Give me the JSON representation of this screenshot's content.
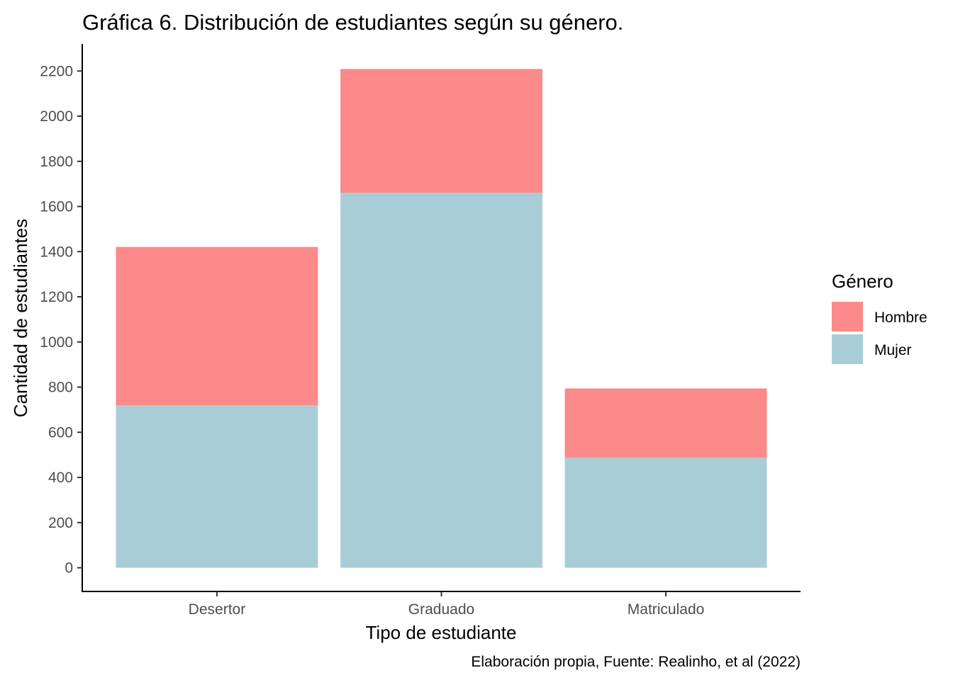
{
  "chart_data": {
    "type": "bar",
    "stacked": true,
    "title": "Gráfica 6. Distribución de estudiantes según su género.",
    "xlabel": "Tipo de estudiante",
    "ylabel": "Cantidad de estudiantes",
    "caption": "Elaboración propia, Fuente: Realinho, et al (2022)",
    "categories": [
      "Desertor",
      "Graduado",
      "Matriculado"
    ],
    "series": [
      {
        "name": "Mujer",
        "color": "#a9cdd6",
        "values": [
          720,
          1661,
          487
        ]
      },
      {
        "name": "Hombre",
        "color": "#fc8a8a",
        "values": [
          701,
          548,
          307
        ]
      }
    ],
    "yticks": [
      0,
      200,
      400,
      600,
      800,
      1000,
      1200,
      1400,
      1600,
      1800,
      2000,
      2200
    ],
    "ylim": [
      -105,
      2320
    ],
    "grid": false,
    "legend": {
      "title": "Género",
      "placement": "right",
      "entries": [
        "Hombre",
        "Mujer"
      ]
    }
  }
}
